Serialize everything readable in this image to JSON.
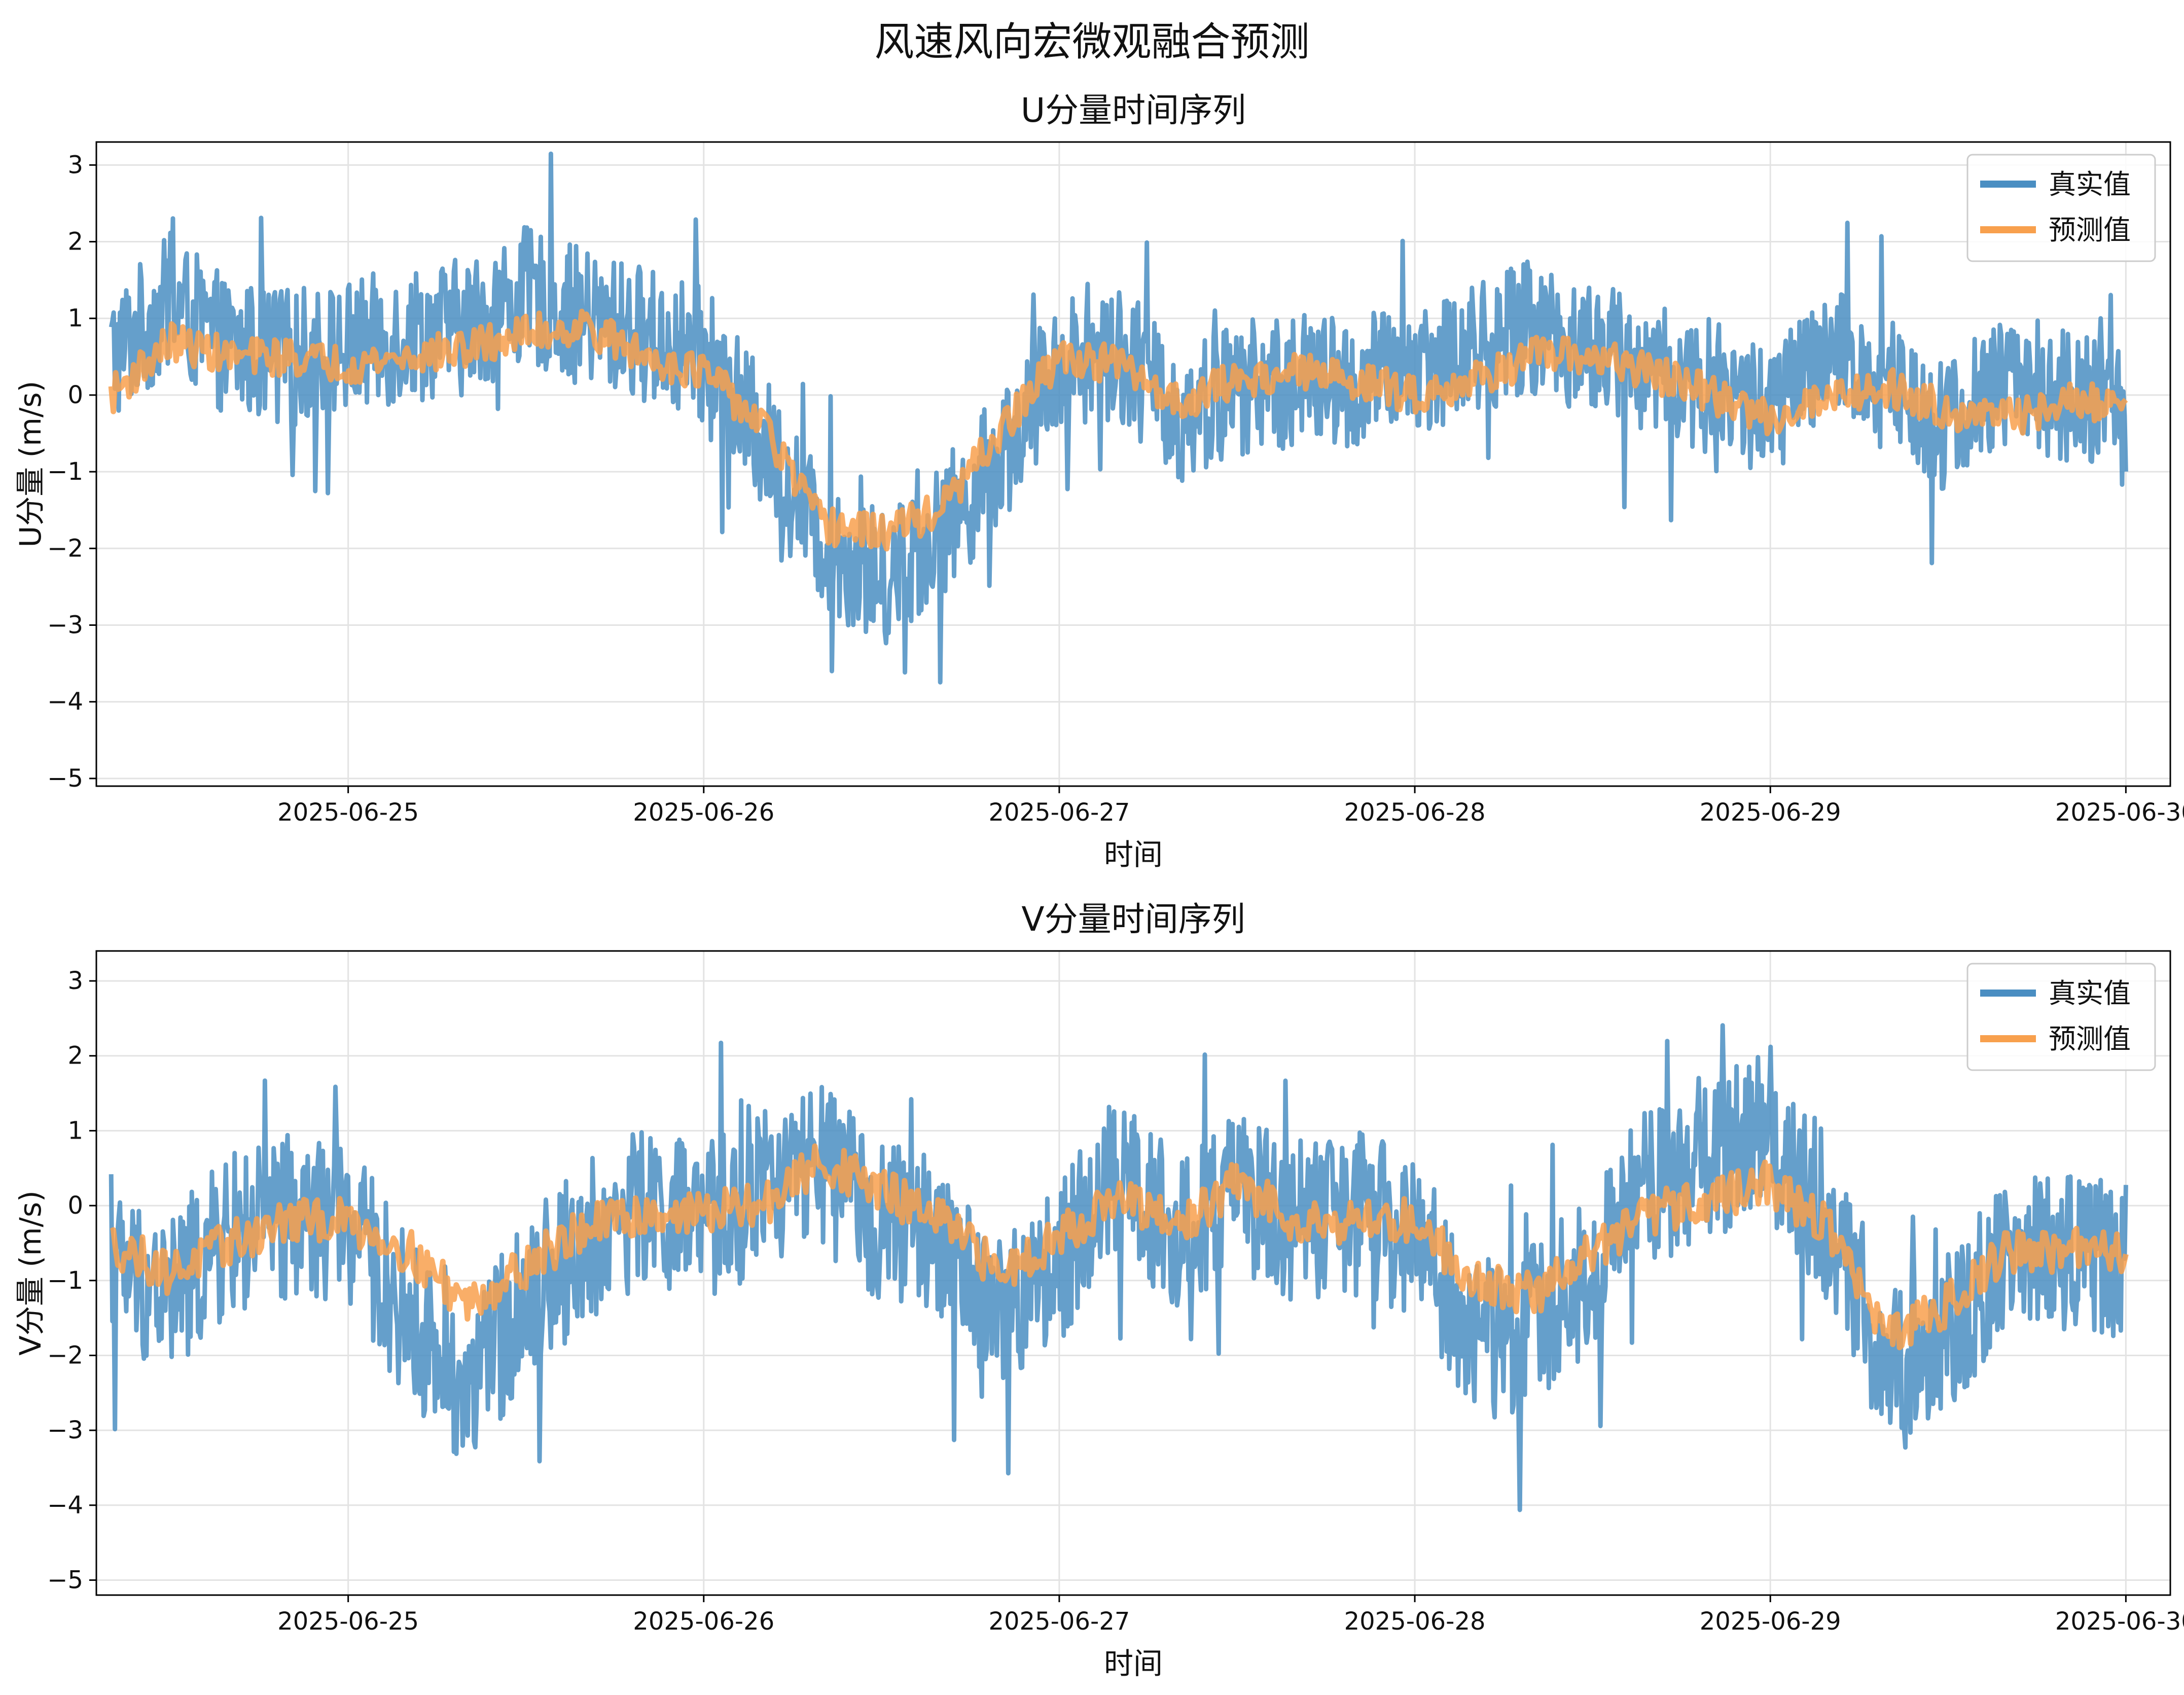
{
  "figure": {
    "title": "风速风向宏微观融合预测"
  },
  "colors": {
    "actual": "#4a8ec2",
    "predicted": "#f8a04d",
    "grid": "#e3e3e3",
    "axis": "#000000"
  },
  "chart_data": [
    {
      "type": "line",
      "title": "U分量时间序列",
      "xlabel": "时间",
      "ylabel": "U分量 (m/s)",
      "xlim": [
        "2025-06-24T07:00",
        "2025-06-30T03:00"
      ],
      "ylim": [
        -5.1,
        3.3
      ],
      "xticks": [
        "2025-06-25",
        "2025-06-26",
        "2025-06-27",
        "2025-06-28",
        "2025-06-29",
        "2025-06-30"
      ],
      "yticks": [
        3,
        2,
        1,
        0,
        -1,
        -2,
        -3,
        -4,
        -5
      ],
      "grid": true,
      "legend_position": "top-right",
      "x": [
        "2025-06-24T08:00",
        "2025-06-24T12:00",
        "2025-06-24T16:00",
        "2025-06-24T20:00",
        "2025-06-25T00:00",
        "2025-06-25T04:00",
        "2025-06-25T08:00",
        "2025-06-25T12:00",
        "2025-06-25T16:00",
        "2025-06-25T20:00",
        "2025-06-26T00:00",
        "2025-06-26T04:00",
        "2025-06-26T08:00",
        "2025-06-26T12:00",
        "2025-06-26T16:00",
        "2025-06-26T20:00",
        "2025-06-27T00:00",
        "2025-06-27T04:00",
        "2025-06-27T08:00",
        "2025-06-27T12:00",
        "2025-06-27T16:00",
        "2025-06-27T20:00",
        "2025-06-28T00:00",
        "2025-06-28T04:00",
        "2025-06-28T08:00",
        "2025-06-28T12:00",
        "2025-06-28T16:00",
        "2025-06-28T20:00",
        "2025-06-29T00:00",
        "2025-06-29T04:00",
        "2025-06-29T08:00",
        "2025-06-29T12:00",
        "2025-06-29T16:00",
        "2025-06-29T20:00",
        "2025-06-30T00:00"
      ],
      "series": [
        {
          "name": "真实值",
          "color": "#4a8ec2",
          "amp": 0.9,
          "values": [
            0.5,
            1.2,
            0.6,
            0.5,
            0.6,
            0.8,
            0.9,
            1.3,
            1.0,
            0.8,
            0.5,
            -0.6,
            -1.9,
            -2.4,
            -1.8,
            -0.8,
            0.4,
            0.6,
            -0.3,
            0.1,
            0.2,
            0.1,
            0.4,
            0.6,
            0.9,
            0.6,
            0.3,
            0.1,
            -0.2,
            0.5,
            0.2,
            -0.4,
            0.2,
            0.0,
            -0.3
          ]
        },
        {
          "name": "预测值",
          "color": "#f8a04d",
          "amp": 0.25,
          "values": [
            0.0,
            0.7,
            0.5,
            0.5,
            0.4,
            0.5,
            0.6,
            0.8,
            0.9,
            0.5,
            0.3,
            -0.4,
            -1.7,
            -1.8,
            -1.5,
            -0.5,
            0.5,
            0.4,
            -0.1,
            0.2,
            0.3,
            0.2,
            0.0,
            0.2,
            0.5,
            0.5,
            0.3,
            0.0,
            -0.3,
            0.0,
            0.1,
            -0.2,
            -0.3,
            -0.1,
            -0.1
          ]
        }
      ]
    },
    {
      "type": "line",
      "title": "V分量时间序列",
      "xlabel": "时间",
      "ylabel": "V分量 (m/s)",
      "xlim": [
        "2025-06-24T07:00",
        "2025-06-30T03:00"
      ],
      "ylim": [
        -5.2,
        3.4
      ],
      "xticks": [
        "2025-06-25",
        "2025-06-26",
        "2025-06-27",
        "2025-06-28",
        "2025-06-29",
        "2025-06-30"
      ],
      "yticks": [
        3,
        2,
        1,
        0,
        -1,
        -2,
        -3,
        -4,
        -5
      ],
      "grid": true,
      "legend_position": "top-right",
      "x": [
        "2025-06-24T08:00",
        "2025-06-24T12:00",
        "2025-06-24T16:00",
        "2025-06-24T20:00",
        "2025-06-25T00:00",
        "2025-06-25T04:00",
        "2025-06-25T08:00",
        "2025-06-25T12:00",
        "2025-06-25T16:00",
        "2025-06-25T20:00",
        "2025-06-26T00:00",
        "2025-06-26T04:00",
        "2025-06-26T08:00",
        "2025-06-26T12:00",
        "2025-06-26T16:00",
        "2025-06-26T20:00",
        "2025-06-27T00:00",
        "2025-06-27T04:00",
        "2025-06-27T08:00",
        "2025-06-27T12:00",
        "2025-06-27T16:00",
        "2025-06-27T20:00",
        "2025-06-28T00:00",
        "2025-06-28T04:00",
        "2025-06-28T08:00",
        "2025-06-28T12:00",
        "2025-06-28T16:00",
        "2025-06-28T20:00",
        "2025-06-29T00:00",
        "2025-06-29T04:00",
        "2025-06-29T08:00",
        "2025-06-29T12:00",
        "2025-06-29T16:00",
        "2025-06-29T20:00",
        "2025-06-30T00:00"
      ],
      "series": [
        {
          "name": "真实值",
          "color": "#4a8ec2",
          "amp": 1.1,
          "values": [
            -0.8,
            -1.2,
            -0.4,
            -0.2,
            -0.2,
            -1.5,
            -2.5,
            -1.2,
            -0.5,
            0.0,
            -0.3,
            0.3,
            0.5,
            -0.2,
            -0.5,
            -1.5,
            -0.8,
            0.5,
            -0.5,
            0.2,
            -0.2,
            -0.1,
            -0.4,
            -1.8,
            -1.6,
            -0.8,
            0.3,
            0.7,
            0.9,
            -0.2,
            -2.3,
            -1.6,
            -0.7,
            -0.6,
            -0.7
          ]
        },
        {
          "name": "预测值",
          "color": "#f8a04d",
          "amp": 0.3,
          "values": [
            -0.5,
            -0.9,
            -0.5,
            -0.2,
            -0.2,
            -0.6,
            -1.3,
            -0.8,
            -0.3,
            -0.1,
            -0.1,
            0.0,
            0.6,
            0.2,
            -0.2,
            -0.9,
            -0.4,
            0.1,
            -0.3,
            0.3,
            -0.2,
            -0.2,
            -0.2,
            -1.0,
            -1.2,
            -0.6,
            -0.1,
            0.1,
            0.3,
            -0.3,
            -1.8,
            -1.3,
            -0.6,
            -0.6,
            -0.6
          ]
        }
      ]
    }
  ]
}
